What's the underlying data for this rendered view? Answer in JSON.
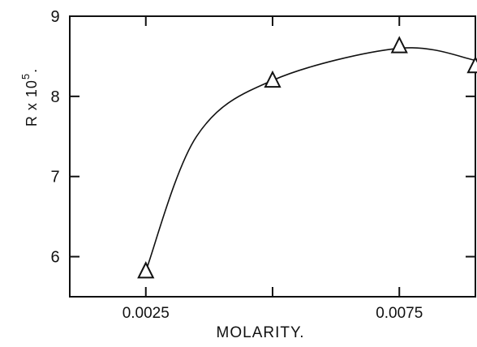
{
  "chart_data": {
    "type": "scatter",
    "title": "",
    "xlabel": "MOLARITY.",
    "ylabel_main": "R x 10",
    "ylabel_sup": "5",
    "ylabel_suffix": ".",
    "xlim": [
      0.001,
      0.009
    ],
    "ylim": [
      5.5,
      9.0
    ],
    "x_ticks": [
      {
        "value": 0.0025,
        "label": "0.0025"
      },
      {
        "value": 0.0075,
        "label": "0.0075"
      }
    ],
    "x_minor_ticks": [
      0.005
    ],
    "y_ticks": [
      {
        "value": 6,
        "label": "6"
      },
      {
        "value": 7,
        "label": "7"
      },
      {
        "value": 8,
        "label": "8"
      },
      {
        "value": 9,
        "label": "9"
      }
    ],
    "marker": "triangle-open",
    "grid": false,
    "series": [
      {
        "x": [
          0.0025,
          0.005,
          0.0075,
          0.009
        ],
        "y": [
          5.82,
          8.2,
          8.63,
          8.38
        ]
      }
    ],
    "curve": {
      "x": [
        0.0025,
        0.0035,
        0.005,
        0.0075,
        0.009
      ],
      "y": [
        5.82,
        7.5,
        8.2,
        8.6,
        8.45
      ]
    }
  }
}
